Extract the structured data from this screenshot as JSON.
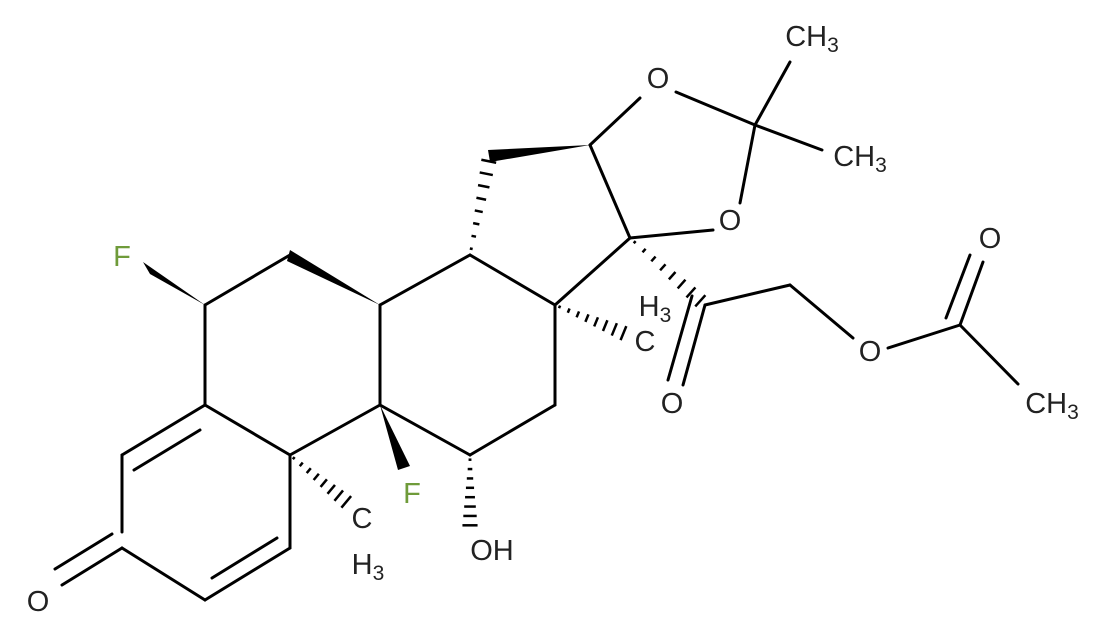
{
  "labels": [
    {
      "text": "O"
    },
    {
      "text": "F"
    },
    {
      "text": "F"
    },
    {
      "text": "OH"
    },
    {
      "text": "C"
    },
    {
      "text": "H",
      "sub": "3"
    },
    {
      "text": "C"
    },
    {
      "text": "H",
      "sub": "3"
    },
    {
      "text": "O"
    },
    {
      "text": "O"
    },
    {
      "text": "CH",
      "sub": "3"
    },
    {
      "text": "CH",
      "sub": "3"
    },
    {
      "text": "O"
    },
    {
      "text": "O"
    },
    {
      "text": "O"
    },
    {
      "text": "CH",
      "sub": "3"
    }
  ]
}
